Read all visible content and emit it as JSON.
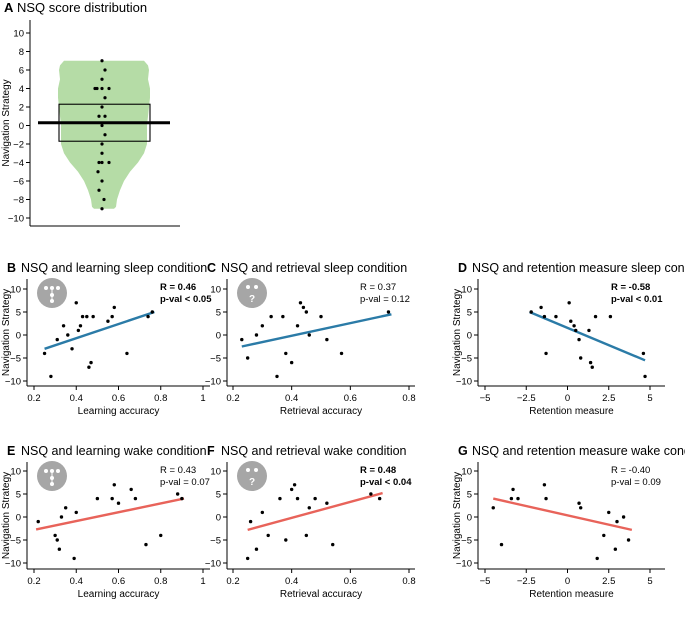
{
  "colors": {
    "violin_fill": "#b5dca6",
    "blue_line": "#2b7ba7",
    "red_line": "#e8635a",
    "icon_grey": "#a6a6a6",
    "axis": "#000000"
  },
  "chart_data": [
    {
      "id": "A",
      "type": "violin",
      "panel_letter": "A",
      "title": "NSQ score distribution",
      "ylabel": "Navigation Strategy",
      "ylim": [
        -10,
        10
      ],
      "yticks": [
        -10,
        -8,
        -6,
        -4,
        -2,
        0,
        2,
        4,
        6,
        8,
        10
      ],
      "box": {
        "median": 0.3,
        "q1": -1.7,
        "q3": 2.3
      },
      "points": [
        7,
        6,
        5,
        4,
        4,
        4,
        4,
        3,
        2,
        1,
        1,
        0,
        -1,
        -2,
        -3,
        -4,
        -4,
        -4,
        -5,
        -6,
        -7,
        -8,
        -9
      ],
      "grid": false
    },
    {
      "id": "B",
      "type": "scatter",
      "panel_letter": "B",
      "title": "NSQ and learning sleep condition",
      "xlabel": "Learning accuracy",
      "ylabel": "Navigation Strategy",
      "xlim": [
        0.2,
        1.0
      ],
      "ylim": [
        -10,
        10
      ],
      "xticks": [
        0.2,
        0.4,
        0.6,
        0.8,
        1.0
      ],
      "xtick_labels": [
        "0.2",
        "0.4",
        "0.6",
        "0.8",
        "1"
      ],
      "yticks": [
        -10,
        -5,
        0,
        5,
        10
      ],
      "stats": {
        "r_label": "R = 0.46",
        "p_label": "p-val < 0.05",
        "bold": true
      },
      "icon": "three-dots",
      "line_color": "blue",
      "fit": {
        "x": [
          0.25,
          0.77
        ],
        "y": [
          -3,
          5
        ]
      },
      "x": [
        0.25,
        0.28,
        0.31,
        0.34,
        0.36,
        0.38,
        0.4,
        0.41,
        0.42,
        0.43,
        0.45,
        0.46,
        0.47,
        0.48,
        0.55,
        0.57,
        0.58,
        0.64,
        0.74,
        0.76
      ],
      "y": [
        -4,
        -9,
        -1,
        2,
        0,
        -3,
        7,
        1,
        2,
        4,
        4,
        -7,
        -6,
        4,
        3,
        4,
        6,
        -4,
        4,
        5
      ],
      "grid": false
    },
    {
      "id": "C",
      "type": "scatter",
      "panel_letter": "C",
      "title": "NSQ and retrieval sleep condition",
      "xlabel": "Retrieval accuracy",
      "ylabel": "",
      "xlim": [
        0.2,
        0.8
      ],
      "ylim": [
        -10,
        10
      ],
      "xticks": [
        0.2,
        0.4,
        0.6,
        0.8
      ],
      "xtick_labels": [
        "0.2",
        "0.4",
        "0.6",
        "0.8"
      ],
      "yticks": [
        -10,
        -5,
        0,
        5,
        10
      ],
      "stats": {
        "r_label": "R = 0.37",
        "p_label": "p-val = 0.12",
        "bold": false
      },
      "icon": "question",
      "line_color": "blue",
      "fit": {
        "x": [
          0.23,
          0.74
        ],
        "y": [
          -2.5,
          4.5
        ]
      },
      "x": [
        0.23,
        0.25,
        0.28,
        0.3,
        0.33,
        0.35,
        0.37,
        0.38,
        0.4,
        0.42,
        0.43,
        0.44,
        0.45,
        0.46,
        0.5,
        0.52,
        0.57,
        0.73
      ],
      "y": [
        -1,
        -5,
        0,
        2,
        4,
        -9,
        4,
        -4,
        -6,
        2,
        7,
        6,
        5,
        0,
        4,
        -1,
        -4,
        5
      ],
      "grid": false
    },
    {
      "id": "D",
      "type": "scatter",
      "panel_letter": "D",
      "title": "NSQ and retention measure sleep condition",
      "xlabel": "Retention measure",
      "ylabel": "Navigation Strategy",
      "xlim": [
        -5,
        5
      ],
      "ylim": [
        -10,
        10
      ],
      "xticks": [
        -5,
        -2.5,
        0,
        2.5,
        5
      ],
      "xtick_labels": [
        "−5",
        "−2.5",
        "0",
        "2.5",
        "5"
      ],
      "yticks": [
        -10,
        -5,
        0,
        5,
        10
      ],
      "stats": {
        "r_label": "R = -0.58",
        "p_label": "p-val < 0.01",
        "bold": true
      },
      "icon": "",
      "line_color": "blue",
      "fit": {
        "x": [
          -2.3,
          4.7
        ],
        "y": [
          5,
          -5.5
        ]
      },
      "x": [
        -2.2,
        -1.6,
        -1.4,
        -1.3,
        -0.7,
        0.1,
        0.2,
        0.4,
        0.5,
        0.7,
        0.8,
        1.3,
        1.4,
        1.5,
        1.7,
        2.6,
        4.6,
        4.7
      ],
      "y": [
        5,
        6,
        4,
        -4,
        4,
        7,
        3,
        2,
        1,
        -1,
        -5,
        1,
        -6,
        -7,
        4,
        4,
        -4,
        -9
      ],
      "grid": false
    },
    {
      "id": "E",
      "type": "scatter",
      "panel_letter": "E",
      "title": "NSQ and learning wake condition",
      "xlabel": "Learning accuracy",
      "ylabel": "Navigation Strategy",
      "xlim": [
        0.2,
        1.0
      ],
      "ylim": [
        -10,
        10
      ],
      "xticks": [
        0.2,
        0.4,
        0.6,
        0.8,
        1.0
      ],
      "xtick_labels": [
        "0.2",
        "0.4",
        "0.6",
        "0.8",
        "1"
      ],
      "yticks": [
        -10,
        -5,
        0,
        5,
        10
      ],
      "stats": {
        "r_label": "R = 0.43",
        "p_label": "p-val = 0.07",
        "bold": false
      },
      "icon": "three-dots",
      "line_color": "red",
      "fit": {
        "x": [
          0.21,
          0.91
        ],
        "y": [
          -2.7,
          4
        ]
      },
      "x": [
        0.22,
        0.3,
        0.31,
        0.32,
        0.33,
        0.35,
        0.39,
        0.4,
        0.5,
        0.57,
        0.58,
        0.6,
        0.66,
        0.68,
        0.73,
        0.8,
        0.88,
        0.9
      ],
      "y": [
        -1,
        -4,
        -5,
        -7,
        0,
        2,
        -9,
        1,
        4,
        4,
        7,
        3,
        6,
        4,
        -6,
        -4,
        5,
        4
      ],
      "grid": false
    },
    {
      "id": "F",
      "type": "scatter",
      "panel_letter": "F",
      "title": "NSQ and retrieval wake condition",
      "xlabel": "Retrieval accuracy",
      "ylabel": "",
      "xlim": [
        0.2,
        0.8
      ],
      "ylim": [
        -10,
        10
      ],
      "xticks": [
        0.2,
        0.4,
        0.6,
        0.8
      ],
      "xtick_labels": [
        "0.2",
        "0.4",
        "0.6",
        "0.8"
      ],
      "yticks": [
        -10,
        -5,
        0,
        5,
        10
      ],
      "stats": {
        "r_label": "R = 0.48",
        "p_label": "p-val < 0.04",
        "bold": true
      },
      "icon": "question",
      "line_color": "red",
      "fit": {
        "x": [
          0.25,
          0.71
        ],
        "y": [
          -2.8,
          5.2
        ]
      },
      "x": [
        0.25,
        0.26,
        0.28,
        0.3,
        0.32,
        0.36,
        0.38,
        0.4,
        0.41,
        0.42,
        0.45,
        0.46,
        0.48,
        0.52,
        0.54,
        0.67,
        0.7
      ],
      "y": [
        -9,
        -1,
        -7,
        1,
        -4,
        4,
        -5,
        6,
        7,
        4,
        -4,
        2,
        4,
        3,
        -6,
        5,
        4
      ],
      "grid": false
    },
    {
      "id": "G",
      "type": "scatter",
      "panel_letter": "G",
      "title": "NSQ and retention measure wake condition",
      "xlabel": "Retention measure",
      "ylabel": "Navigation Strategy",
      "xlim": [
        -5,
        5
      ],
      "ylim": [
        -10,
        10
      ],
      "xticks": [
        -5,
        -2.5,
        0,
        2.5,
        5
      ],
      "xtick_labels": [
        "−5",
        "−2.5",
        "0",
        "2.5",
        "5"
      ],
      "yticks": [
        -10,
        -5,
        0,
        5,
        10
      ],
      "stats": {
        "r_label": "R = -0.40",
        "p_label": "p-val = 0.09",
        "bold": false
      },
      "icon": "",
      "line_color": "red",
      "fit": {
        "x": [
          -4.5,
          3.9
        ],
        "y": [
          4,
          -2.8
        ]
      },
      "x": [
        -4.5,
        -4.0,
        -3.4,
        -3.3,
        -3.0,
        -1.4,
        -1.3,
        0.7,
        0.8,
        1.8,
        2.2,
        2.5,
        2.9,
        3.0,
        3.4,
        3.7
      ],
      "y": [
        2,
        -6,
        4,
        6,
        4,
        7,
        4,
        3,
        2,
        -9,
        -4,
        1,
        -7,
        -1,
        0,
        -5
      ],
      "grid": false
    }
  ]
}
